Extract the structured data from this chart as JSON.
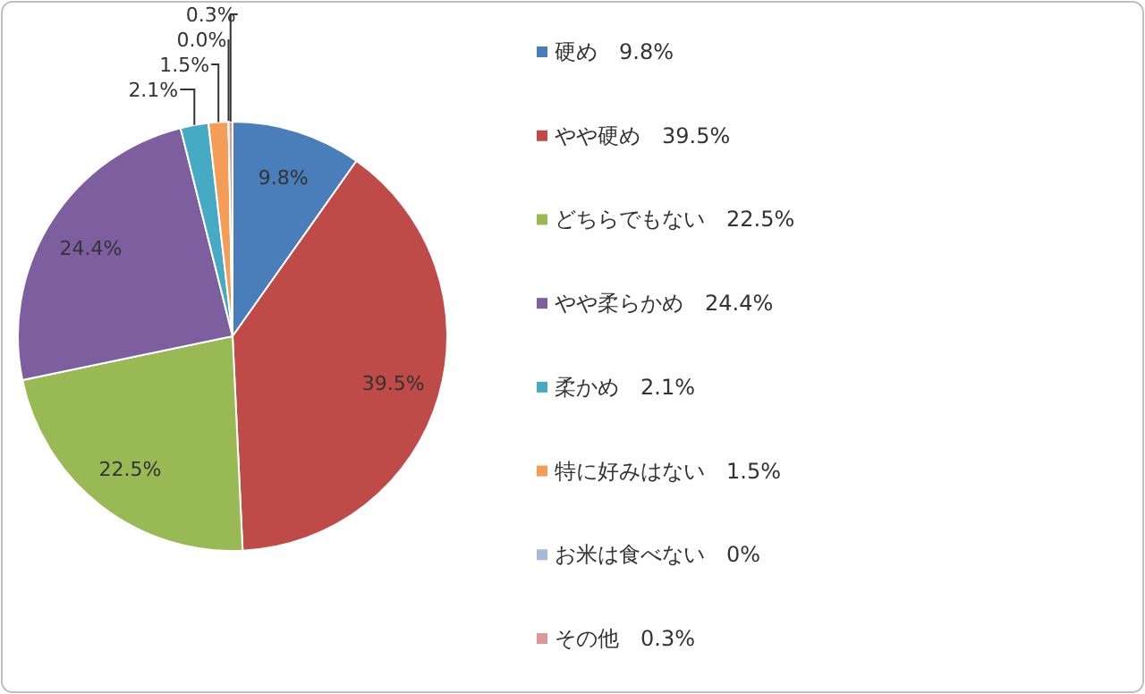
{
  "chart_data": {
    "type": "pie",
    "categories": [
      "硬め　9.8%",
      "やや硬め　39.5%",
      "どちらでもない　22.5%",
      "やや柔らかめ　24.4%",
      "柔かめ　2.1%",
      "特に好みはない　1.5%",
      "お米は食べない　0%",
      "その他　0.3%"
    ],
    "values": [
      9.8,
      39.5,
      22.5,
      24.4,
      2.1,
      1.5,
      0.0,
      0.3
    ],
    "value_labels": [
      "9.8%",
      "39.5%",
      "22.5%",
      "24.4%",
      "2.1%",
      "1.5%",
      "0.0%",
      "0.3%"
    ],
    "colors": [
      "#4a7ebb",
      "#be4b48",
      "#98b954",
      "#7d5fa0",
      "#46aac5",
      "#f59d56",
      "#a5b9dc",
      "#dc9896"
    ],
    "legend": "right"
  }
}
